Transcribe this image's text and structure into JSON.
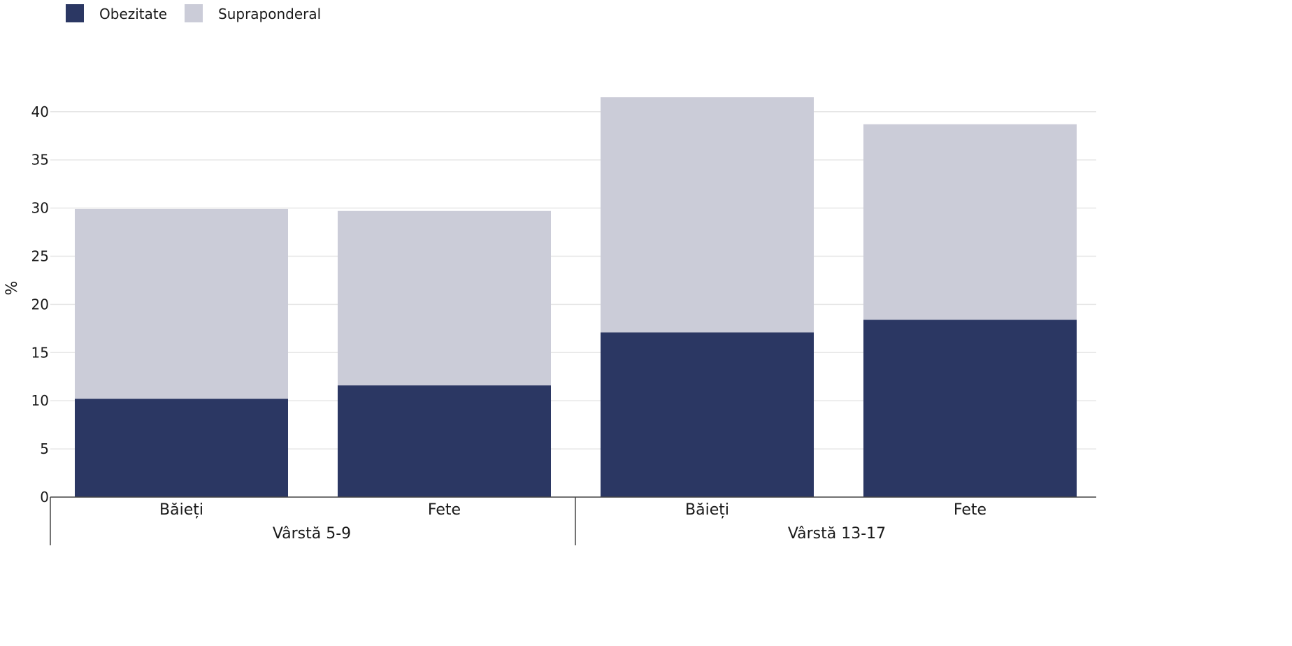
{
  "chart_data": {
    "type": "bar",
    "stacked": true,
    "ylabel": "%",
    "xlabel": "",
    "ylim": [
      0,
      41.5
    ],
    "yticks": [
      0,
      5,
      10,
      15,
      20,
      25,
      30,
      35,
      40
    ],
    "grid": true,
    "legend_position": "top-left",
    "groups": [
      {
        "label": "Vârstă 5-9",
        "categories": [
          "Băieți",
          "Fete"
        ]
      },
      {
        "label": "Vârstă 13-17",
        "categories": [
          "Băieți",
          "Fete"
        ]
      }
    ],
    "categories": [
      "Băieți",
      "Fete",
      "Băieți",
      "Fete"
    ],
    "series": [
      {
        "name": "Obezitate",
        "color": "#2b3763",
        "values": [
          10.2,
          11.6,
          17.1,
          18.4
        ]
      },
      {
        "name": "Supraponderal",
        "color": "#cbccd8",
        "values": [
          19.7,
          18.1,
          24.4,
          20.3
        ]
      }
    ]
  }
}
